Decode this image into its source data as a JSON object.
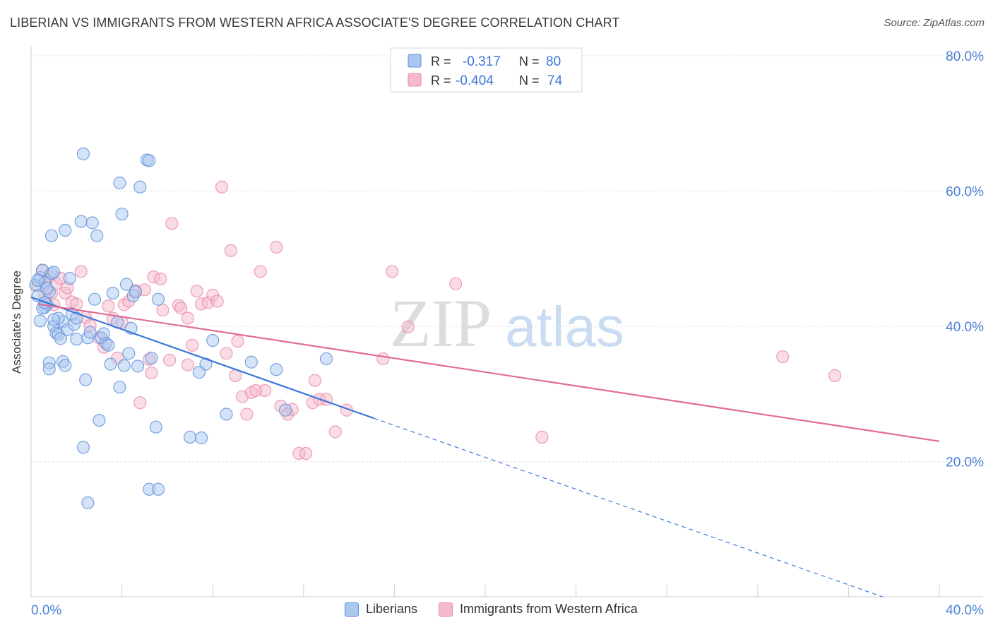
{
  "title": "LIBERIAN VS IMMIGRANTS FROM WESTERN AFRICA ASSOCIATE'S DEGREE CORRELATION CHART",
  "source": "Source: ZipAtlas.com",
  "watermark": {
    "zip": "ZIP",
    "atlas": "atlas"
  },
  "colors": {
    "blue_fill": "#a9c8f0",
    "blue_stroke": "#5b8fd8",
    "blue_line": "#3b78d8",
    "pink_fill": "#f5b9cc",
    "pink_stroke": "#e98aa8",
    "pink_line": "#e06c94",
    "axis_text": "#4a7fd4",
    "grid": "#e2e2e2"
  },
  "stats_legend": [
    {
      "r_label": "R =",
      "r_value": "-0.317",
      "n_label": "N =",
      "n_value": "80",
      "color": "blue"
    },
    {
      "r_label": "R =",
      "r_value": "-0.404",
      "n_label": "N =",
      "n_value": "74",
      "color": "pink"
    }
  ],
  "chart_data": {
    "type": "scatter",
    "title": "LIBERIAN VS IMMIGRANTS FROM WESTERN AFRICA ASSOCIATE'S DEGREE CORRELATION CHART",
    "xlabel": "",
    "ylabel": "Associate's Degree",
    "xlim": [
      0,
      40
    ],
    "ylim": [
      0,
      80
    ],
    "x_tick_labels": [
      "0.0%",
      "40.0%"
    ],
    "y_ticks": [
      20,
      40,
      60,
      80
    ],
    "y_tick_labels": [
      "20.0%",
      "40.0%",
      "60.0%",
      "80.0%"
    ],
    "grid": true,
    "legend": [
      "Liberians",
      "Immigrants from Western Africa"
    ],
    "series": [
      {
        "name": "Liberians",
        "color": "blue",
        "trend": {
          "x": [
            0,
            15.1
          ],
          "y": [
            44.3,
            26.4
          ],
          "dashed_to": {
            "x": 37.5,
            "y": 0
          }
        },
        "points": [
          [
            0.2,
            46.1
          ],
          [
            0.3,
            44.5
          ],
          [
            0.4,
            47.2
          ],
          [
            0.5,
            48.3
          ],
          [
            0.6,
            46.5
          ],
          [
            0.7,
            43.2
          ],
          [
            0.8,
            45.1
          ],
          [
            0.9,
            47.8
          ],
          [
            0.4,
            40.8
          ],
          [
            0.6,
            42.8
          ],
          [
            0.9,
            53.4
          ],
          [
            1.0,
            40.0
          ],
          [
            1.1,
            39.0
          ],
          [
            1.2,
            38.8
          ],
          [
            1.3,
            38.2
          ],
          [
            1.4,
            40.7
          ],
          [
            1.5,
            54.2
          ],
          [
            1.6,
            39.5
          ],
          [
            1.7,
            47.1
          ],
          [
            1.8,
            41.8
          ],
          [
            1.9,
            40.3
          ],
          [
            2.0,
            38.1
          ],
          [
            2.2,
            55.5
          ],
          [
            2.3,
            65.5
          ],
          [
            2.4,
            32.1
          ],
          [
            2.5,
            38.3
          ],
          [
            2.6,
            39.1
          ],
          [
            2.7,
            55.3
          ],
          [
            2.8,
            44.0
          ],
          [
            2.9,
            53.4
          ],
          [
            3.0,
            26.1
          ],
          [
            3.1,
            38.3
          ],
          [
            3.2,
            38.9
          ],
          [
            3.3,
            37.5
          ],
          [
            3.4,
            37.2
          ],
          [
            3.5,
            34.4
          ],
          [
            3.6,
            44.9
          ],
          [
            3.8,
            40.6
          ],
          [
            3.9,
            61.2
          ],
          [
            4.0,
            56.6
          ],
          [
            4.1,
            34.2
          ],
          [
            4.2,
            46.2
          ],
          [
            4.3,
            36.0
          ],
          [
            4.4,
            39.7
          ],
          [
            4.5,
            44.5
          ],
          [
            4.6,
            45.1
          ],
          [
            4.7,
            34.1
          ],
          [
            4.8,
            60.6
          ],
          [
            5.1,
            64.6
          ],
          [
            5.2,
            64.5
          ],
          [
            5.3,
            35.3
          ],
          [
            5.5,
            25.1
          ],
          [
            5.6,
            44.0
          ],
          [
            5.2,
            15.9
          ],
          [
            5.6,
            15.9
          ],
          [
            3.9,
            31.0
          ],
          [
            2.3,
            22.1
          ],
          [
            2.5,
            13.9
          ],
          [
            0.8,
            34.6
          ],
          [
            0.8,
            33.7
          ],
          [
            1.4,
            34.8
          ],
          [
            1.5,
            34.2
          ],
          [
            7.0,
            23.6
          ],
          [
            7.5,
            23.5
          ],
          [
            7.7,
            34.4
          ],
          [
            8.0,
            37.9
          ],
          [
            8.6,
            27.0
          ],
          [
            9.7,
            34.7
          ],
          [
            10.8,
            33.6
          ],
          [
            11.2,
            27.6
          ],
          [
            13.0,
            35.2
          ],
          [
            1.0,
            48.0
          ],
          [
            0.5,
            42.7
          ],
          [
            1.2,
            41.2
          ],
          [
            0.3,
            46.8
          ],
          [
            0.7,
            45.6
          ],
          [
            7.4,
            33.2
          ],
          [
            0.6,
            43.5
          ],
          [
            1.0,
            41.0
          ],
          [
            2.0,
            41.2
          ]
        ]
      },
      {
        "name": "Immigrants from Western Africa",
        "color": "pink",
        "trend": {
          "x": [
            0.3,
            40.0
          ],
          "y": [
            43.3,
            23.0
          ]
        },
        "points": [
          [
            0.3,
            46.0
          ],
          [
            0.5,
            48.3
          ],
          [
            0.6,
            44.4
          ],
          [
            0.7,
            46.9
          ],
          [
            0.8,
            47.4
          ],
          [
            0.9,
            44.9
          ],
          [
            1.0,
            43.2
          ],
          [
            1.1,
            46.3
          ],
          [
            1.5,
            44.9
          ],
          [
            1.6,
            45.7
          ],
          [
            1.8,
            43.6
          ],
          [
            2.0,
            43.3
          ],
          [
            2.2,
            48.1
          ],
          [
            2.4,
            41.3
          ],
          [
            2.6,
            40.1
          ],
          [
            3.0,
            38.3
          ],
          [
            3.2,
            36.9
          ],
          [
            3.4,
            43.0
          ],
          [
            3.6,
            41.2
          ],
          [
            3.8,
            35.3
          ],
          [
            4.0,
            40.6
          ],
          [
            4.1,
            43.2
          ],
          [
            4.3,
            43.7
          ],
          [
            4.6,
            45.3
          ],
          [
            5.0,
            45.4
          ],
          [
            5.2,
            35.1
          ],
          [
            5.4,
            47.3
          ],
          [
            5.7,
            47.0
          ],
          [
            5.8,
            42.4
          ],
          [
            6.1,
            35.0
          ],
          [
            6.2,
            55.2
          ],
          [
            6.5,
            43.1
          ],
          [
            6.6,
            42.7
          ],
          [
            6.9,
            41.2
          ],
          [
            7.1,
            37.2
          ],
          [
            7.3,
            45.2
          ],
          [
            7.5,
            43.3
          ],
          [
            7.8,
            43.5
          ],
          [
            8.0,
            44.6
          ],
          [
            8.2,
            43.7
          ],
          [
            8.4,
            60.6
          ],
          [
            8.6,
            36.0
          ],
          [
            8.8,
            51.2
          ],
          [
            9.1,
            37.8
          ],
          [
            9.3,
            29.6
          ],
          [
            9.5,
            27.0
          ],
          [
            9.7,
            30.2
          ],
          [
            9.9,
            30.5
          ],
          [
            10.1,
            48.1
          ],
          [
            10.3,
            30.5
          ],
          [
            10.8,
            51.7
          ],
          [
            11.0,
            28.2
          ],
          [
            11.3,
            27.0
          ],
          [
            11.5,
            27.7
          ],
          [
            11.8,
            21.2
          ],
          [
            12.1,
            21.2
          ],
          [
            12.4,
            28.7
          ],
          [
            12.7,
            29.2
          ],
          [
            13.0,
            29.2
          ],
          [
            13.4,
            24.4
          ],
          [
            13.9,
            27.6
          ],
          [
            15.5,
            35.2
          ],
          [
            15.9,
            48.1
          ],
          [
            16.6,
            39.9
          ],
          [
            18.7,
            46.3
          ],
          [
            22.5,
            23.6
          ],
          [
            33.1,
            35.5
          ],
          [
            35.4,
            32.7
          ],
          [
            4.8,
            28.7
          ],
          [
            5.3,
            33.1
          ],
          [
            1.3,
            47.1
          ],
          [
            6.9,
            34.3
          ],
          [
            12.5,
            32.0
          ],
          [
            9.0,
            32.7
          ]
        ]
      }
    ]
  },
  "bottom_legend": [
    {
      "label": "Liberians",
      "color": "blue"
    },
    {
      "label": "Immigrants from Western Africa",
      "color": "pink"
    }
  ]
}
